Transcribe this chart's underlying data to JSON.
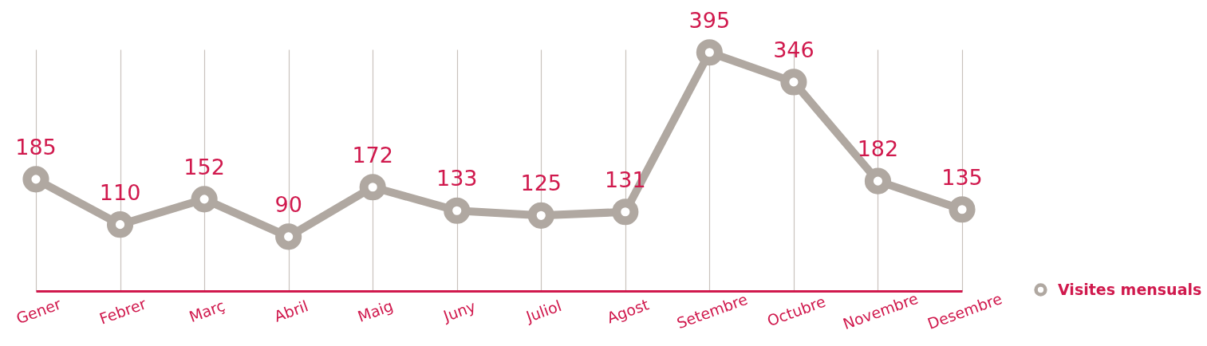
{
  "chart_data": {
    "type": "line",
    "categories": [
      "Gener",
      "Febrer",
      "Març",
      "Abril",
      "Maig",
      "Juny",
      "Juliol",
      "Agost",
      "Setembre",
      "Octubre",
      "Novembre",
      "Desembre"
    ],
    "series": [
      {
        "name": "Visites mensuals",
        "color": "#b0a8a1",
        "values": [
          185,
          110,
          152,
          90,
          172,
          133,
          125,
          131,
          395,
          346,
          182,
          135
        ]
      }
    ],
    "ylim": [
      0,
      400
    ],
    "data_labels": true,
    "grid": "x",
    "legend": "bottom right",
    "marker": "circle",
    "line_style": "solid",
    "tick_labels": "x"
  }
}
